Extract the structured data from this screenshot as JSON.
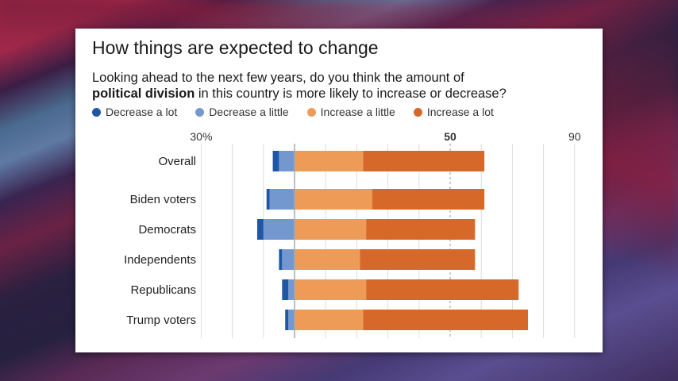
{
  "header": {
    "title": "How things are expected to change",
    "subtitle_pre": "Looking ahead to the next few years, do you think the amount of",
    "subtitle_bold": "political division",
    "subtitle_post": " in this country is more likely to increase or decrease?"
  },
  "colors": {
    "decrease_a_lot": "#1f57a6",
    "decrease_a_little": "#7398cf",
    "increase_a_little": "#ee9b57",
    "increase_a_lot": "#d6692a",
    "gridline": "#dddddd",
    "zero_line": "#aaaaaa"
  },
  "chart_data": {
    "type": "bar",
    "orientation": "horizontal-diverging-stacked",
    "title": "How things are expected to change",
    "subtitle": "Looking ahead to the next few years, do you think the amount of political division in this country is more likely to increase or decrease?",
    "xlabel": "",
    "ylabel": "",
    "xlim": [
      -30,
      90
    ],
    "tick_labels": [
      {
        "value": -30,
        "label": "30%",
        "bold": false
      },
      {
        "value": 50,
        "label": "50",
        "bold": true
      },
      {
        "value": 90,
        "label": "90",
        "bold": false
      }
    ],
    "gridlines_every": 10,
    "grid": true,
    "legend_position": "top-left",
    "categories": [
      "Overall",
      "Biden voters",
      "Democrats",
      "Independents",
      "Republicans",
      "Trump voters"
    ],
    "series": [
      {
        "name": "Decrease a lot",
        "direction": "negative",
        "values": [
          2,
          1,
          2,
          1,
          2,
          1
        ]
      },
      {
        "name": "Decrease a little",
        "direction": "negative",
        "values": [
          5,
          8,
          10,
          4,
          2,
          2
        ]
      },
      {
        "name": "Increase a little",
        "direction": "positive",
        "values": [
          22,
          25,
          23,
          21,
          23,
          22
        ]
      },
      {
        "name": "Increase a lot",
        "direction": "positive",
        "values": [
          39,
          36,
          35,
          37,
          49,
          53
        ]
      }
    ]
  }
}
